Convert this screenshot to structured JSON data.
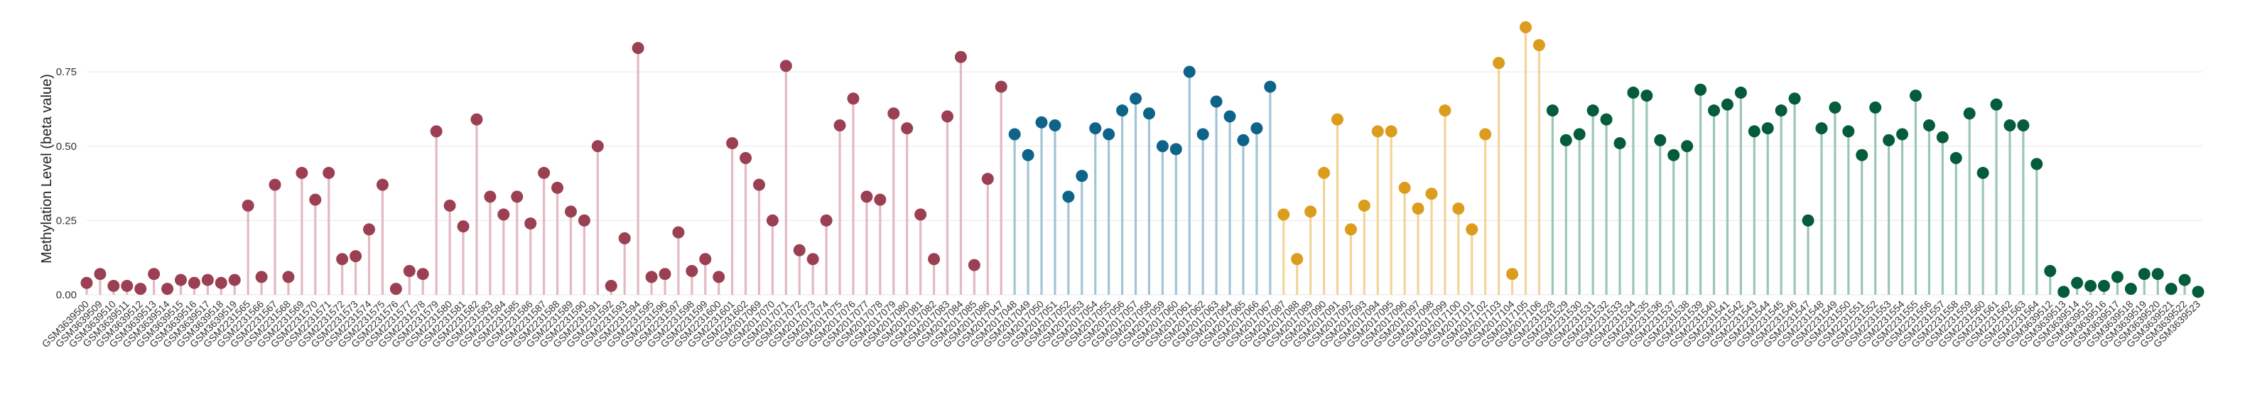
{
  "chart_data": {
    "type": "lollipop",
    "title": "",
    "xlabel": "",
    "ylabel": "Methylation Level (beta value)",
    "ylim": [
      0,
      0.92
    ],
    "yticks": [
      0.0,
      0.25,
      0.5,
      0.75
    ],
    "ytick_labels": [
      "0.00",
      "0.25",
      "0.50",
      "0.75"
    ],
    "grid": true,
    "legend": "none",
    "groups": [
      {
        "color": "#9b3f52",
        "stem_color": "#e3b9c2"
      },
      {
        "color": "#0e6488",
        "stem_color": "#a3c4d6"
      },
      {
        "color": "#dc9c1e",
        "stem_color": "#f1d599"
      },
      {
        "color": "#045c3b",
        "stem_color": "#9cc6b4"
      }
    ],
    "points": [
      {
        "label": "GSM3639500",
        "value": 0.04,
        "group": 0
      },
      {
        "label": "GSM3639509",
        "value": 0.07,
        "group": 0
      },
      {
        "label": "GSM3639510",
        "value": 0.03,
        "group": 0
      },
      {
        "label": "GSM3639511",
        "value": 0.03,
        "group": 0
      },
      {
        "label": "GSM3639512",
        "value": 0.02,
        "group": 0
      },
      {
        "label": "GSM3639513",
        "value": 0.07,
        "group": 0
      },
      {
        "label": "GSM3639514",
        "value": 0.02,
        "group": 0
      },
      {
        "label": "GSM3639515",
        "value": 0.05,
        "group": 0
      },
      {
        "label": "GSM3639516",
        "value": 0.04,
        "group": 0
      },
      {
        "label": "GSM3639517",
        "value": 0.05,
        "group": 0
      },
      {
        "label": "GSM3639518",
        "value": 0.04,
        "group": 0
      },
      {
        "label": "GSM3639519",
        "value": 0.05,
        "group": 0
      },
      {
        "label": "GSM2231565",
        "value": 0.3,
        "group": 0
      },
      {
        "label": "GSM2231566",
        "value": 0.06,
        "group": 0
      },
      {
        "label": "GSM2231567",
        "value": 0.37,
        "group": 0
      },
      {
        "label": "GSM2231568",
        "value": 0.06,
        "group": 0
      },
      {
        "label": "GSM2231569",
        "value": 0.41,
        "group": 0
      },
      {
        "label": "GSM2231570",
        "value": 0.32,
        "group": 0
      },
      {
        "label": "GSM2231571",
        "value": 0.41,
        "group": 0
      },
      {
        "label": "GSM2231572",
        "value": 0.12,
        "group": 0
      },
      {
        "label": "GSM2231573",
        "value": 0.13,
        "group": 0
      },
      {
        "label": "GSM2231574",
        "value": 0.22,
        "group": 0
      },
      {
        "label": "GSM2231575",
        "value": 0.37,
        "group": 0
      },
      {
        "label": "GSM2231576",
        "value": 0.02,
        "group": 0
      },
      {
        "label": "GSM2231577",
        "value": 0.08,
        "group": 0
      },
      {
        "label": "GSM2231578",
        "value": 0.07,
        "group": 0
      },
      {
        "label": "GSM2231579",
        "value": 0.55,
        "group": 0
      },
      {
        "label": "GSM2231580",
        "value": 0.3,
        "group": 0
      },
      {
        "label": "GSM2231581",
        "value": 0.23,
        "group": 0
      },
      {
        "label": "GSM2231582",
        "value": 0.59,
        "group": 0
      },
      {
        "label": "GSM2231583",
        "value": 0.33,
        "group": 0
      },
      {
        "label": "GSM2231584",
        "value": 0.27,
        "group": 0
      },
      {
        "label": "GSM2231585",
        "value": 0.33,
        "group": 0
      },
      {
        "label": "GSM2231586",
        "value": 0.24,
        "group": 0
      },
      {
        "label": "GSM2231587",
        "value": 0.41,
        "group": 0
      },
      {
        "label": "GSM2231588",
        "value": 0.36,
        "group": 0
      },
      {
        "label": "GSM2231589",
        "value": 0.28,
        "group": 0
      },
      {
        "label": "GSM2231590",
        "value": 0.25,
        "group": 0
      },
      {
        "label": "GSM2231591",
        "value": 0.5,
        "group": 0
      },
      {
        "label": "GSM2231592",
        "value": 0.03,
        "group": 0
      },
      {
        "label": "GSM2231593",
        "value": 0.19,
        "group": 0
      },
      {
        "label": "GSM2231594",
        "value": 0.83,
        "group": 0
      },
      {
        "label": "GSM2231595",
        "value": 0.06,
        "group": 0
      },
      {
        "label": "GSM2231596",
        "value": 0.07,
        "group": 0
      },
      {
        "label": "GSM2231597",
        "value": 0.21,
        "group": 0
      },
      {
        "label": "GSM2231598",
        "value": 0.08,
        "group": 0
      },
      {
        "label": "GSM2231599",
        "value": 0.12,
        "group": 0
      },
      {
        "label": "GSM2231600",
        "value": 0.06,
        "group": 0
      },
      {
        "label": "GSM2231601",
        "value": 0.51,
        "group": 0
      },
      {
        "label": "GSM2231602",
        "value": 0.46,
        "group": 0
      },
      {
        "label": "GSM2017069",
        "value": 0.37,
        "group": 0
      },
      {
        "label": "GSM2017070",
        "value": 0.25,
        "group": 0
      },
      {
        "label": "GSM2017071",
        "value": 0.77,
        "group": 0
      },
      {
        "label": "GSM2017072",
        "value": 0.15,
        "group": 0
      },
      {
        "label": "GSM2017073",
        "value": 0.12,
        "group": 0
      },
      {
        "label": "GSM2017074",
        "value": 0.25,
        "group": 0
      },
      {
        "label": "GSM2017075",
        "value": 0.57,
        "group": 0
      },
      {
        "label": "GSM2017076",
        "value": 0.66,
        "group": 0
      },
      {
        "label": "GSM2017077",
        "value": 0.33,
        "group": 0
      },
      {
        "label": "GSM2017078",
        "value": 0.32,
        "group": 0
      },
      {
        "label": "GSM2017079",
        "value": 0.61,
        "group": 0
      },
      {
        "label": "GSM2017080",
        "value": 0.56,
        "group": 0
      },
      {
        "label": "GSM2017081",
        "value": 0.27,
        "group": 0
      },
      {
        "label": "GSM2017082",
        "value": 0.12,
        "group": 0
      },
      {
        "label": "GSM2017083",
        "value": 0.6,
        "group": 0
      },
      {
        "label": "GSM2017084",
        "value": 0.8,
        "group": 0
      },
      {
        "label": "GSM2017085",
        "value": 0.1,
        "group": 0
      },
      {
        "label": "GSM2017086",
        "value": 0.39,
        "group": 0
      },
      {
        "label": "GSM2017047",
        "value": 0.7,
        "group": 0
      },
      {
        "label": "GSM2017048",
        "value": 0.54,
        "group": 1
      },
      {
        "label": "GSM2017049",
        "value": 0.47,
        "group": 1
      },
      {
        "label": "GSM2017050",
        "value": 0.58,
        "group": 1
      },
      {
        "label": "GSM2017051",
        "value": 0.57,
        "group": 1
      },
      {
        "label": "GSM2017052",
        "value": 0.33,
        "group": 1
      },
      {
        "label": "GSM2017053",
        "value": 0.4,
        "group": 1
      },
      {
        "label": "GSM2017054",
        "value": 0.56,
        "group": 1
      },
      {
        "label": "GSM2017055",
        "value": 0.54,
        "group": 1
      },
      {
        "label": "GSM2017056",
        "value": 0.62,
        "group": 1
      },
      {
        "label": "GSM2017057",
        "value": 0.66,
        "group": 1
      },
      {
        "label": "GSM2017058",
        "value": 0.61,
        "group": 1
      },
      {
        "label": "GSM2017059",
        "value": 0.5,
        "group": 1
      },
      {
        "label": "GSM2017060",
        "value": 0.49,
        "group": 1
      },
      {
        "label": "GSM2017061",
        "value": 0.75,
        "group": 1
      },
      {
        "label": "GSM2017062",
        "value": 0.54,
        "group": 1
      },
      {
        "label": "GSM2017063",
        "value": 0.65,
        "group": 1
      },
      {
        "label": "GSM2017064",
        "value": 0.6,
        "group": 1
      },
      {
        "label": "GSM2017065",
        "value": 0.52,
        "group": 1
      },
      {
        "label": "GSM2017066",
        "value": 0.56,
        "group": 1
      },
      {
        "label": "GSM2017067",
        "value": 0.7,
        "group": 1
      },
      {
        "label": "GSM2017087",
        "value": 0.27,
        "group": 2
      },
      {
        "label": "GSM2017088",
        "value": 0.12,
        "group": 2
      },
      {
        "label": "GSM2017089",
        "value": 0.28,
        "group": 2
      },
      {
        "label": "GSM2017090",
        "value": 0.41,
        "group": 2
      },
      {
        "label": "GSM2017091",
        "value": 0.59,
        "group": 2
      },
      {
        "label": "GSM2017092",
        "value": 0.22,
        "group": 2
      },
      {
        "label": "GSM2017093",
        "value": 0.3,
        "group": 2
      },
      {
        "label": "GSM2017094",
        "value": 0.55,
        "group": 2
      },
      {
        "label": "GSM2017095",
        "value": 0.55,
        "group": 2
      },
      {
        "label": "GSM2017096",
        "value": 0.36,
        "group": 2
      },
      {
        "label": "GSM2017097",
        "value": 0.29,
        "group": 2
      },
      {
        "label": "GSM2017098",
        "value": 0.34,
        "group": 2
      },
      {
        "label": "GSM2017099",
        "value": 0.62,
        "group": 2
      },
      {
        "label": "GSM2017100",
        "value": 0.29,
        "group": 2
      },
      {
        "label": "GSM2017101",
        "value": 0.22,
        "group": 2
      },
      {
        "label": "GSM2017102",
        "value": 0.54,
        "group": 2
      },
      {
        "label": "GSM2017103",
        "value": 0.78,
        "group": 2
      },
      {
        "label": "GSM2017104",
        "value": 0.07,
        "group": 2
      },
      {
        "label": "GSM2017105",
        "value": 0.9,
        "group": 2
      },
      {
        "label": "GSM2017106",
        "value": 0.84,
        "group": 2
      },
      {
        "label": "GSM2231528",
        "value": 0.62,
        "group": 3
      },
      {
        "label": "GSM2231529",
        "value": 0.52,
        "group": 3
      },
      {
        "label": "GSM2231530",
        "value": 0.54,
        "group": 3
      },
      {
        "label": "GSM2231531",
        "value": 0.62,
        "group": 3
      },
      {
        "label": "GSM2231532",
        "value": 0.59,
        "group": 3
      },
      {
        "label": "GSM2231533",
        "value": 0.51,
        "group": 3
      },
      {
        "label": "GSM2231534",
        "value": 0.68,
        "group": 3
      },
      {
        "label": "GSM2231535",
        "value": 0.67,
        "group": 3
      },
      {
        "label": "GSM2231536",
        "value": 0.52,
        "group": 3
      },
      {
        "label": "GSM2231537",
        "value": 0.47,
        "group": 3
      },
      {
        "label": "GSM2231538",
        "value": 0.5,
        "group": 3
      },
      {
        "label": "GSM2231539",
        "value": 0.69,
        "group": 3
      },
      {
        "label": "GSM2231540",
        "value": 0.62,
        "group": 3
      },
      {
        "label": "GSM2231541",
        "value": 0.64,
        "group": 3
      },
      {
        "label": "GSM2231542",
        "value": 0.68,
        "group": 3
      },
      {
        "label": "GSM2231543",
        "value": 0.55,
        "group": 3
      },
      {
        "label": "GSM2231544",
        "value": 0.56,
        "group": 3
      },
      {
        "label": "GSM2231545",
        "value": 0.62,
        "group": 3
      },
      {
        "label": "GSM2231546",
        "value": 0.66,
        "group": 3
      },
      {
        "label": "GSM2231547",
        "value": 0.25,
        "group": 3
      },
      {
        "label": "GSM2231548",
        "value": 0.56,
        "group": 3
      },
      {
        "label": "GSM2231549",
        "value": 0.63,
        "group": 3
      },
      {
        "label": "GSM2231550",
        "value": 0.55,
        "group": 3
      },
      {
        "label": "GSM2231551",
        "value": 0.47,
        "group": 3
      },
      {
        "label": "GSM2231552",
        "value": 0.63,
        "group": 3
      },
      {
        "label": "GSM2231553",
        "value": 0.52,
        "group": 3
      },
      {
        "label": "GSM2231554",
        "value": 0.54,
        "group": 3
      },
      {
        "label": "GSM2231555",
        "value": 0.67,
        "group": 3
      },
      {
        "label": "GSM2231556",
        "value": 0.57,
        "group": 3
      },
      {
        "label": "GSM2231557",
        "value": 0.53,
        "group": 3
      },
      {
        "label": "GSM2231558",
        "value": 0.46,
        "group": 3
      },
      {
        "label": "GSM2231559",
        "value": 0.61,
        "group": 3
      },
      {
        "label": "GSM2231560",
        "value": 0.41,
        "group": 3
      },
      {
        "label": "GSM2231561",
        "value": 0.64,
        "group": 3
      },
      {
        "label": "GSM2231562",
        "value": 0.57,
        "group": 3
      },
      {
        "label": "GSM2231563",
        "value": 0.57,
        "group": 3
      },
      {
        "label": "GSM2231564",
        "value": 0.44,
        "group": 3
      },
      {
        "label": "GSM3639512",
        "value": 0.08,
        "group": 3
      },
      {
        "label": "GSM3639513",
        "value": 0.01,
        "group": 3
      },
      {
        "label": "GSM3639514",
        "value": 0.04,
        "group": 3
      },
      {
        "label": "GSM3639515",
        "value": 0.03,
        "group": 3
      },
      {
        "label": "GSM3639516",
        "value": 0.03,
        "group": 3
      },
      {
        "label": "GSM3639517",
        "value": 0.06,
        "group": 3
      },
      {
        "label": "GSM3639518",
        "value": 0.02,
        "group": 3
      },
      {
        "label": "GSM3639519",
        "value": 0.07,
        "group": 3
      },
      {
        "label": "GSM3639520",
        "value": 0.07,
        "group": 3
      },
      {
        "label": "GSM3639521",
        "value": 0.02,
        "group": 3
      },
      {
        "label": "GSM3639522",
        "value": 0.05,
        "group": 3
      },
      {
        "label": "GSM3639523",
        "value": 0.01,
        "group": 3
      }
    ]
  }
}
